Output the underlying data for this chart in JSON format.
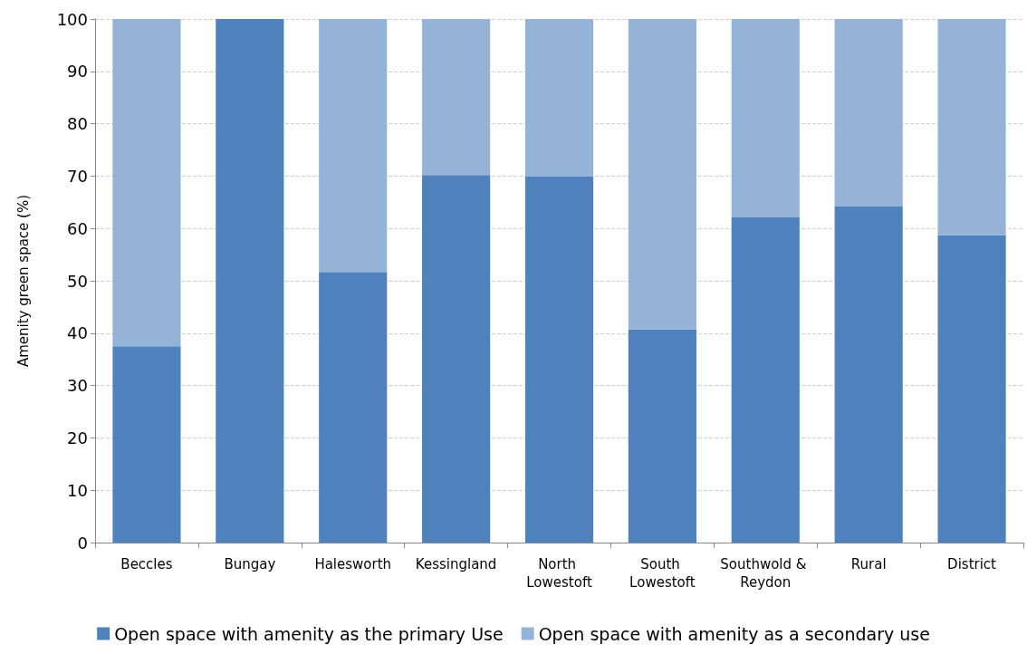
{
  "chart_data": {
    "type": "bar",
    "ylabel": "Amenity green space (%)",
    "categories": [
      "Beccles",
      "Bungay",
      "Halesworth",
      "Kessingland",
      "North Lowestoft",
      "South Lowestoft",
      "Southwold & Reydon",
      "Rural",
      "District"
    ],
    "series": [
      {
        "name": "Open space with amenity as the primary Use",
        "color": "#4f81bd",
        "values": [
          37.5,
          100,
          51.7,
          70.2,
          69.9,
          40.7,
          62.1,
          64.2,
          58.7
        ]
      },
      {
        "name": "Open space with amenity as a secondary use",
        "color": "#95b3d7",
        "values": [
          62.5,
          0,
          48.3,
          29.8,
          30.1,
          59.3,
          37.9,
          35.8,
          41.3
        ]
      }
    ],
    "stacked": true,
    "ylim": [
      0,
      100
    ],
    "yticks": [
      0,
      10,
      20,
      30,
      40,
      50,
      60,
      70,
      80,
      90,
      100
    ],
    "grid": "y",
    "legend": "bottom"
  }
}
